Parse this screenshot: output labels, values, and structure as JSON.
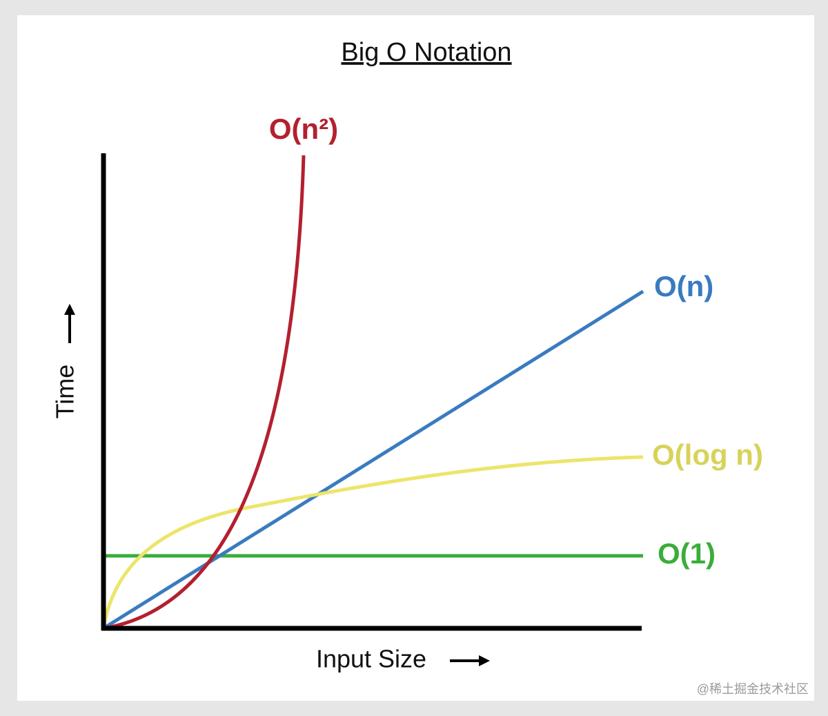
{
  "title": "Big O Notation",
  "x_axis_label": "Input Size",
  "y_axis_label": "Time",
  "curves": [
    {
      "label": "O(n²)"
    },
    {
      "label": "O(n)"
    },
    {
      "label": "O(log n)"
    },
    {
      "label": "O(1)"
    }
  ],
  "watermark": "@稀土掘金技术社区"
}
